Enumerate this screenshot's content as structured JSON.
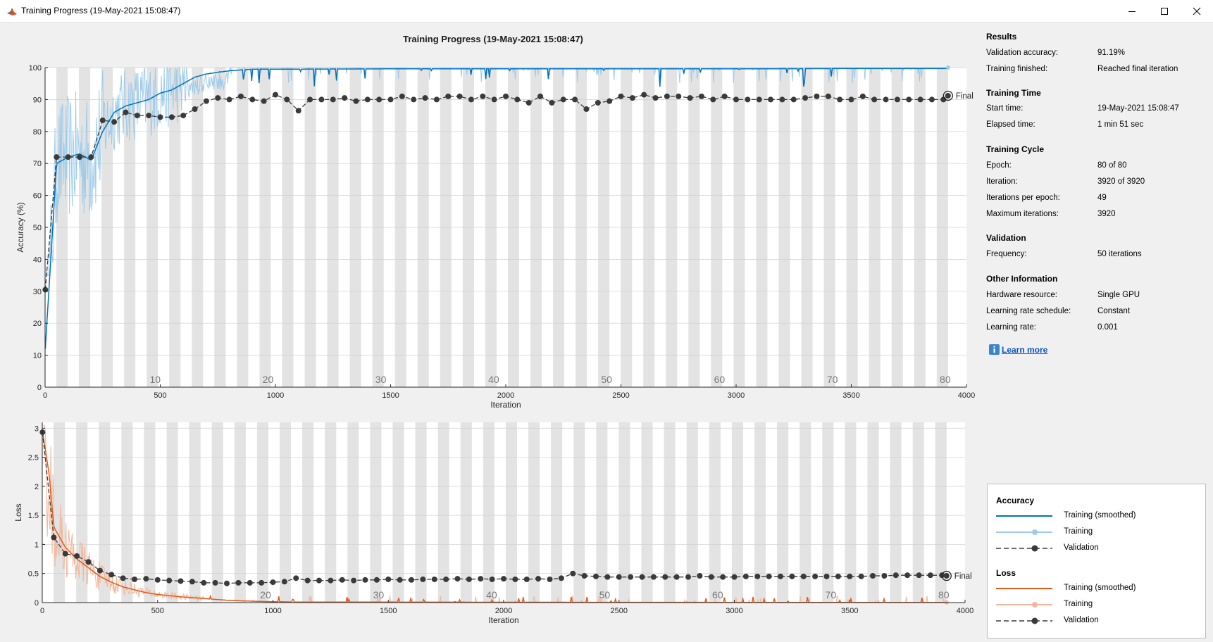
{
  "window": {
    "title": "Training Progress (19-May-2021 15:08:47)"
  },
  "plot_title": "Training Progress (19-May-2021 15:08:47)",
  "results": {
    "heading": "Results",
    "validation_accuracy_label": "Validation accuracy:",
    "validation_accuracy_value": "91.19%",
    "training_finished_label": "Training finished:",
    "training_finished_value": "Reached final iteration"
  },
  "training_time": {
    "heading": "Training Time",
    "start_label": "Start time:",
    "start_value": "19-May-2021 15:08:47",
    "elapsed_label": "Elapsed time:",
    "elapsed_value": "1 min 51 sec"
  },
  "training_cycle": {
    "heading": "Training Cycle",
    "epoch_label": "Epoch:",
    "epoch_value": "80 of 80",
    "iteration_label": "Iteration:",
    "iteration_value": "3920 of 3920",
    "ipe_label": "Iterations per epoch:",
    "ipe_value": "49",
    "maxit_label": "Maximum iterations:",
    "maxit_value": "3920"
  },
  "validation": {
    "heading": "Validation",
    "freq_label": "Frequency:",
    "freq_value": "50 iterations"
  },
  "other": {
    "heading": "Other Information",
    "hw_label": "Hardware resource:",
    "hw_value": "Single GPU",
    "lrs_label": "Learning rate schedule:",
    "lrs_value": "Constant",
    "lr_label": "Learning rate:",
    "lr_value": "0.001"
  },
  "learn_more": "Learn more",
  "legend": {
    "accuracy_heading": "Accuracy",
    "loss_heading": "Loss",
    "training_smoothed": "Training (smoothed)",
    "training": "Training",
    "validation": "Validation"
  },
  "colors": {
    "accuracy": "#0072bd",
    "accuracy_light": "#9ecbe9",
    "loss": "#e05a1c",
    "loss_light": "#f2b79a",
    "validation": "#3a3a3a"
  },
  "chart_data": [
    {
      "type": "line",
      "title": "",
      "xlabel": "Iteration",
      "ylabel": "Accuracy (%)",
      "xlim": [
        0,
        4000
      ],
      "ylim": [
        0,
        100
      ],
      "xticks": [
        0,
        500,
        1000,
        1500,
        2000,
        2500,
        3000,
        3500,
        4000
      ],
      "yticks": [
        0,
        10,
        20,
        30,
        40,
        50,
        60,
        70,
        80,
        90,
        100
      ],
      "epoch_labels": [
        10,
        20,
        30,
        40,
        50,
        60,
        70,
        80
      ],
      "iterations_per_epoch": 49,
      "final_label": "Final",
      "series": [
        {
          "name": "Training (smoothed)",
          "x": [
            1,
            50,
            100,
            150,
            200,
            250,
            300,
            350,
            400,
            450,
            500,
            550,
            600,
            650,
            700,
            800,
            900,
            1000,
            1500,
            2000,
            2500,
            3000,
            3500,
            3920
          ],
          "y": [
            12,
            70,
            72,
            73,
            71,
            80,
            86,
            88,
            89,
            90,
            92,
            93,
            95,
            97,
            98,
            99,
            99.5,
            99.5,
            99.6,
            99.6,
            99.6,
            99.6,
            99.7,
            99.7
          ]
        },
        {
          "name": "Validation",
          "x": [
            1,
            50,
            100,
            150,
            200,
            250,
            300,
            350,
            400,
            450,
            500,
            550,
            600,
            650,
            700,
            750,
            800,
            850,
            900,
            950,
            1000,
            1050,
            1100,
            1150,
            1200,
            1250,
            1300,
            1350,
            1400,
            1450,
            1500,
            1550,
            1600,
            1650,
            1700,
            1750,
            1800,
            1850,
            1900,
            1950,
            2000,
            2050,
            2100,
            2150,
            2200,
            2250,
            2300,
            2350,
            2400,
            2450,
            2500,
            2550,
            2600,
            2650,
            2700,
            2750,
            2800,
            2850,
            2900,
            2950,
            3000,
            3050,
            3100,
            3150,
            3200,
            3250,
            3300,
            3350,
            3400,
            3450,
            3500,
            3550,
            3600,
            3650,
            3700,
            3750,
            3800,
            3850,
            3900,
            3920
          ],
          "y": [
            30.5,
            72,
            72,
            72,
            72,
            83.5,
            83,
            86,
            85,
            85,
            84.5,
            84.5,
            85,
            87,
            89.5,
            90.5,
            90,
            91,
            90,
            89.5,
            91.5,
            90,
            86.5,
            90,
            90,
            90,
            90.5,
            89.5,
            90,
            90,
            90,
            91,
            90,
            90.5,
            90,
            91,
            91,
            90,
            91,
            90,
            91,
            90,
            89,
            91,
            89,
            90,
            90,
            87,
            89,
            89.5,
            91,
            90.5,
            91.5,
            90.5,
            91,
            91,
            90.5,
            91,
            90,
            91,
            90,
            90,
            90,
            90,
            90,
            90,
            90.5,
            91,
            91,
            90,
            90,
            91,
            90,
            90,
            90,
            90,
            90,
            90,
            90,
            91.19
          ]
        }
      ]
    },
    {
      "type": "line",
      "title": "",
      "xlabel": "Iteration",
      "ylabel": "Loss",
      "xlim": [
        0,
        4000
      ],
      "ylim": [
        0,
        3.1
      ],
      "xticks": [
        0,
        500,
        1000,
        1500,
        2000,
        2500,
        3000,
        3500,
        4000
      ],
      "yticks": [
        0,
        0.5,
        1,
        1.5,
        2,
        2.5,
        3
      ],
      "epoch_labels": [
        20,
        30,
        40,
        50,
        60,
        70,
        80
      ],
      "iterations_per_epoch": 49,
      "final_label": "Final",
      "series": [
        {
          "name": "Training (smoothed)",
          "x": [
            1,
            30,
            50,
            100,
            150,
            200,
            250,
            300,
            350,
            400,
            450,
            500,
            600,
            700,
            800,
            900,
            1000,
            1100,
            1500,
            2000,
            2500,
            3000,
            3500,
            3920
          ],
          "y": [
            2.95,
            2.2,
            1.3,
            0.95,
            0.75,
            0.6,
            0.45,
            0.35,
            0.27,
            0.22,
            0.17,
            0.14,
            0.1,
            0.07,
            0.04,
            0.025,
            0.015,
            0.01,
            0.008,
            0.006,
            0.005,
            0.004,
            0.004,
            0.003
          ]
        },
        {
          "name": "Validation",
          "x": [
            1,
            50,
            100,
            150,
            200,
            250,
            300,
            350,
            400,
            450,
            500,
            550,
            600,
            650,
            700,
            750,
            800,
            850,
            900,
            950,
            1000,
            1050,
            1100,
            1150,
            1200,
            1250,
            1300,
            1350,
            1400,
            1450,
            1500,
            1550,
            1600,
            1650,
            1700,
            1750,
            1800,
            1850,
            1900,
            1950,
            2000,
            2050,
            2100,
            2150,
            2200,
            2250,
            2300,
            2350,
            2400,
            2450,
            2500,
            2550,
            2600,
            2650,
            2700,
            2750,
            2800,
            2850,
            2900,
            2950,
            3000,
            3050,
            3100,
            3150,
            3200,
            3250,
            3300,
            3350,
            3400,
            3450,
            3500,
            3550,
            3600,
            3650,
            3700,
            3750,
            3800,
            3850,
            3900,
            3920
          ],
          "y": [
            2.93,
            1.12,
            0.84,
            0.8,
            0.7,
            0.55,
            0.48,
            0.42,
            0.4,
            0.41,
            0.39,
            0.38,
            0.37,
            0.36,
            0.34,
            0.34,
            0.33,
            0.34,
            0.34,
            0.34,
            0.35,
            0.36,
            0.42,
            0.38,
            0.38,
            0.38,
            0.39,
            0.38,
            0.39,
            0.39,
            0.4,
            0.39,
            0.39,
            0.4,
            0.4,
            0.4,
            0.41,
            0.4,
            0.41,
            0.4,
            0.41,
            0.4,
            0.4,
            0.41,
            0.4,
            0.42,
            0.5,
            0.46,
            0.45,
            0.44,
            0.44,
            0.44,
            0.44,
            0.44,
            0.44,
            0.44,
            0.44,
            0.46,
            0.44,
            0.44,
            0.44,
            0.45,
            0.45,
            0.45,
            0.45,
            0.45,
            0.45,
            0.45,
            0.45,
            0.45,
            0.45,
            0.45,
            0.46,
            0.46,
            0.47,
            0.47,
            0.47,
            0.47,
            0.47,
            0.46
          ]
        }
      ]
    }
  ]
}
